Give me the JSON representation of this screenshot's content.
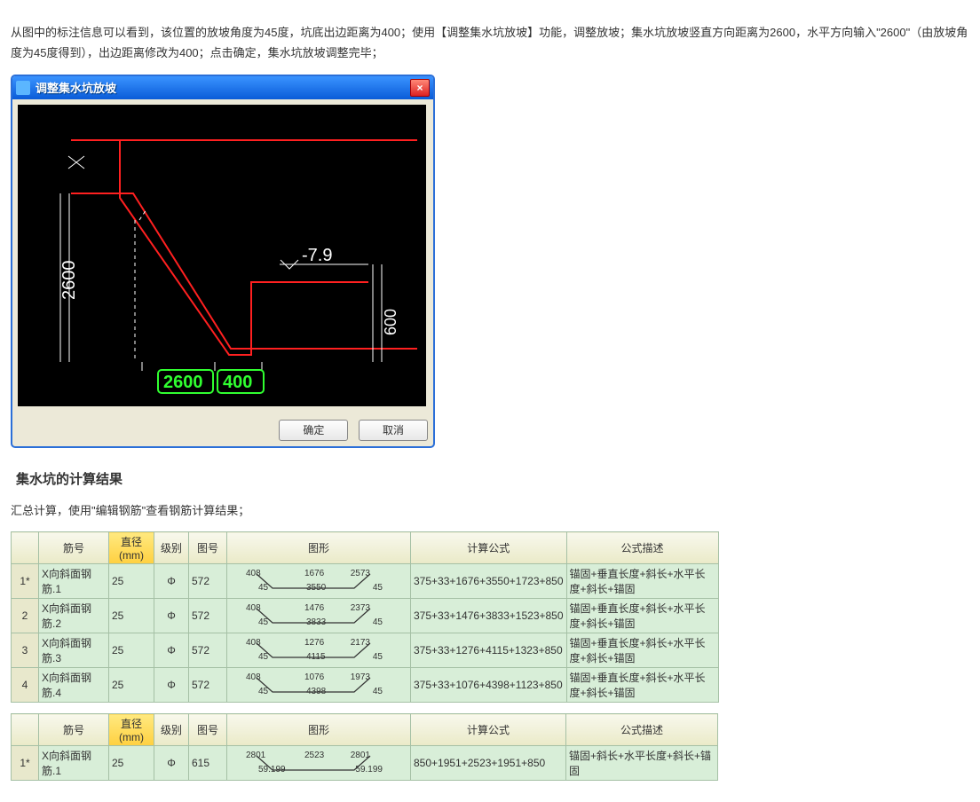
{
  "para1": "从图中的标注信息可以看到，该位置的放坡角度为45度，坑底出边距离为400；使用【调整集水坑放坡】功能，调整放坡；集水坑放坡竖直方向距离为2600，水平方向输入\"2600\"（由放坡角度为45度得到），出边距离修改为400；点击确定，集水坑放坡调整完毕；",
  "dialog": {
    "title": "调整集水坑放坡",
    "drawing": {
      "dim_v": "2600",
      "dim_h1": "2600",
      "dim_h2": "400",
      "dim_right": "600",
      "elev": "-7.9",
      "box_color": "#30ff30",
      "line_red": "#ff2020"
    },
    "ok": "确定",
    "cancel": "取消"
  },
  "heading": "集水坑的计算结果",
  "para2": "汇总计算，使用\"编辑钢筋\"查看钢筋计算结果；",
  "headers": {
    "no": "筋号",
    "dia": "直径(mm)",
    "lvl": "级别",
    "pic": "图号",
    "shape": "图形",
    "formula": "计算公式",
    "desc": "公式描述"
  },
  "table1": {
    "rows": [
      {
        "rn": "1*",
        "no": "X向斜面钢筋.1",
        "dia": "25",
        "lvl": "Φ",
        "pic": "572",
        "shape": {
          "l1": "408",
          "l2": "45",
          "t": "1676",
          "b": "3550",
          "r1": "2573",
          "r2": "45"
        },
        "formula": "375+33+1676+3550+1723+850",
        "desc": "锚固+垂直长度+斜长+水平长度+斜长+锚固"
      },
      {
        "rn": "2",
        "no": "X向斜面钢筋.2",
        "dia": "25",
        "lvl": "Φ",
        "pic": "572",
        "shape": {
          "l1": "408",
          "l2": "45",
          "t": "1476",
          "b": "3833",
          "r1": "2373",
          "r2": "45"
        },
        "formula": "375+33+1476+3833+1523+850",
        "desc": "锚固+垂直长度+斜长+水平长度+斜长+锚固"
      },
      {
        "rn": "3",
        "no": "X向斜面钢筋.3",
        "dia": "25",
        "lvl": "Φ",
        "pic": "572",
        "shape": {
          "l1": "408",
          "l2": "45",
          "t": "1276",
          "b": "4115",
          "r1": "2173",
          "r2": "45"
        },
        "formula": "375+33+1276+4115+1323+850",
        "desc": "锚固+垂直长度+斜长+水平长度+斜长+锚固"
      },
      {
        "rn": "4",
        "no": "X向斜面钢筋.4",
        "dia": "25",
        "lvl": "Φ",
        "pic": "572",
        "shape": {
          "l1": "408",
          "l2": "45",
          "t": "1076",
          "b": "4398",
          "r1": "1973",
          "r2": "45"
        },
        "formula": "375+33+1076+4398+1123+850",
        "desc": "锚固+垂直长度+斜长+水平长度+斜长+锚固"
      }
    ]
  },
  "table2": {
    "rows": [
      {
        "rn": "1*",
        "no": "X向斜面钢筋.1",
        "dia": "25",
        "lvl": "Φ",
        "pic": "615",
        "shape": {
          "l1": "2801",
          "l2": "59.199",
          "t": "2523",
          "b": "",
          "r1": "2801",
          "r2": "59.199"
        },
        "formula": "850+1951+2523+1951+850",
        "desc": "锚固+斜长+水平长度+斜长+锚固"
      }
    ]
  },
  "colw": {
    "rn": 24,
    "no": 72,
    "dia": 44,
    "lvl": 32,
    "pic": 36,
    "shape": 200,
    "formula": 168,
    "desc": 164
  }
}
